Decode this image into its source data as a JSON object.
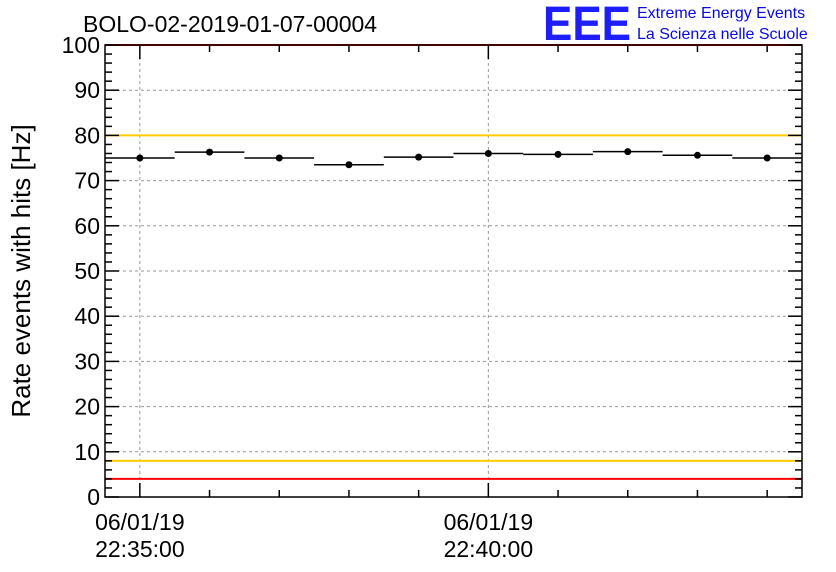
{
  "chart_data": {
    "type": "scatter",
    "title": "BOLO-02-2019-01-07-00004",
    "ylabel": "Rate events with hits [Hz]",
    "xlabel": "",
    "ylim": [
      0,
      100
    ],
    "yticks": [
      0,
      10,
      20,
      30,
      40,
      50,
      60,
      70,
      80,
      90,
      100
    ],
    "x_range_seconds": [
      -30,
      570
    ],
    "x_tick_labels": [
      {
        "x_seconds": 0,
        "line1": "06/01/19",
        "line2": "22:35:00"
      },
      {
        "x_seconds": 300,
        "line1": "06/01/19",
        "line2": "22:40:00"
      }
    ],
    "grid": true,
    "series": [
      {
        "values": [
          {
            "x": 0,
            "y": 75.0
          },
          {
            "x": 60,
            "y": 76.3
          },
          {
            "x": 120,
            "y": 75.0
          },
          {
            "x": 180,
            "y": 73.5
          },
          {
            "x": 240,
            "y": 75.2
          },
          {
            "x": 300,
            "y": 76.0
          },
          {
            "x": 360,
            "y": 75.8
          },
          {
            "x": 420,
            "y": 76.4
          },
          {
            "x": 480,
            "y": 75.6
          },
          {
            "x": 540,
            "y": 75.0
          }
        ],
        "bin_half_width_seconds": 30,
        "error": 0.6,
        "color": "#000000"
      }
    ],
    "reference_lines": [
      {
        "y": 100,
        "color": "#ff0000"
      },
      {
        "y": 80,
        "color": "#ffcc00"
      },
      {
        "y": 8,
        "color": "#ffcc00"
      },
      {
        "y": 4,
        "color": "#ff0000"
      }
    ]
  },
  "logo": {
    "text": "EEE",
    "line1": "Extreme Energy Events",
    "line2": "La Scienza nelle Scuole",
    "color": "#1d1dff"
  }
}
